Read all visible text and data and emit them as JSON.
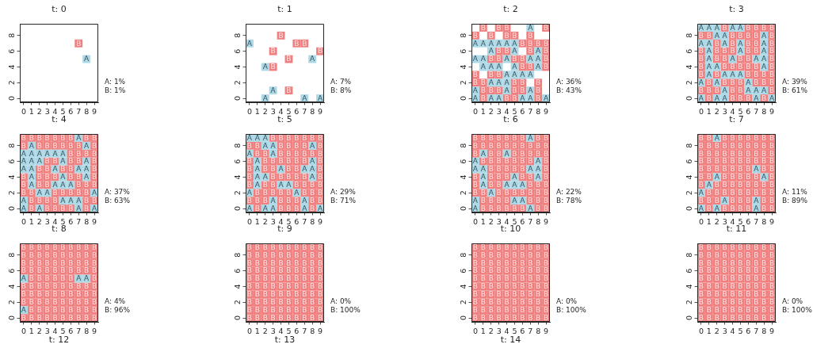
{
  "chart_data": [
    {
      "type": "scatter",
      "title": "t: 0",
      "xlim": [
        -0.5,
        9.5
      ],
      "ylim": [
        -0.5,
        9.5
      ],
      "xticks": [
        0,
        1,
        2,
        3,
        4,
        5,
        6,
        7,
        8,
        9
      ],
      "yticks": [
        0,
        2,
        4,
        6,
        8
      ],
      "marker": "square",
      "annotations": [
        "A: 1%",
        "B: 1%"
      ],
      "series": [
        {
          "name": "A",
          "color": "#add8e6",
          "x": [
            8
          ],
          "values": [
            5
          ]
        },
        {
          "name": "B",
          "color": "#f08080",
          "x": [
            7
          ],
          "values": [
            7
          ]
        }
      ]
    },
    {
      "type": "scatter",
      "title": "t: 1",
      "xlim": [
        -0.5,
        9.5
      ],
      "ylim": [
        -0.5,
        9.5
      ],
      "xticks": [
        0,
        1,
        2,
        3,
        4,
        5,
        6,
        7,
        8,
        9
      ],
      "yticks": [
        0,
        2,
        4,
        6,
        8
      ],
      "marker": "square",
      "annotations": [
        "A: 7%",
        "B: 8%"
      ],
      "series": [
        {
          "name": "A",
          "color": "#add8e6",
          "x": [
            0,
            8,
            2,
            3,
            2,
            7,
            9
          ],
          "values": [
            7,
            5,
            4,
            1,
            0,
            0,
            0
          ]
        },
        {
          "name": "B",
          "color": "#f08080",
          "x": [
            4,
            6,
            7,
            3,
            9,
            5,
            3,
            5
          ],
          "values": [
            8,
            7,
            7,
            6,
            6,
            5,
            4,
            1
          ]
        }
      ]
    },
    {
      "type": "scatter",
      "title": "t: 2",
      "xlim": [
        -0.5,
        9.5
      ],
      "ylim": [
        -0.5,
        9.5
      ],
      "xticks": [
        0,
        1,
        2,
        3,
        4,
        5,
        6,
        7,
        8,
        9
      ],
      "yticks": [
        0,
        2,
        4,
        6,
        8
      ],
      "marker": "square",
      "annotations": [
        "A: 36%",
        "B: 43%"
      ],
      "series": [
        {
          "name": "A",
          "color": "#add8e6",
          "x": [
            7,
            0,
            1,
            2,
            3,
            4,
            5,
            2,
            5,
            8,
            0,
            1,
            4,
            7,
            8,
            1,
            2,
            3,
            5,
            8,
            4,
            5,
            6,
            7,
            2,
            3,
            4,
            0,
            4,
            7,
            0,
            2,
            3,
            6,
            7,
            9
          ],
          "values": [
            9,
            7,
            7,
            7,
            7,
            7,
            7,
            6,
            6,
            6,
            5,
            5,
            5,
            5,
            5,
            4,
            4,
            4,
            4,
            4,
            3,
            3,
            3,
            3,
            2,
            2,
            2,
            1,
            1,
            1,
            0,
            0,
            0,
            0,
            0,
            0
          ]
        },
        {
          "name": "B",
          "color": "#f08080",
          "x": [
            1,
            3,
            4,
            9,
            0,
            2,
            4,
            5,
            7,
            6,
            7,
            8,
            9,
            3,
            4,
            7,
            9,
            2,
            3,
            5,
            6,
            9,
            6,
            7,
            9,
            0,
            2,
            3,
            0,
            1,
            5,
            6,
            8,
            1,
            2,
            3,
            5,
            6,
            8,
            1,
            4,
            5,
            8
          ],
          "values": [
            9,
            9,
            9,
            9,
            8,
            8,
            8,
            8,
            8,
            7,
            7,
            7,
            7,
            6,
            6,
            6,
            6,
            5,
            5,
            5,
            5,
            5,
            4,
            4,
            4,
            3,
            3,
            3,
            2,
            2,
            2,
            2,
            2,
            1,
            1,
            1,
            1,
            1,
            1,
            0,
            0,
            0,
            0
          ]
        }
      ]
    },
    {
      "type": "scatter",
      "title": "t: 3",
      "xlim": [
        -0.5,
        9.5
      ],
      "ylim": [
        -0.5,
        9.5
      ],
      "xticks": [
        0,
        1,
        2,
        3,
        4,
        5,
        6,
        7,
        8,
        9
      ],
      "yticks": [
        0,
        2,
        4,
        6,
        8
      ],
      "marker": "square",
      "annotations": [
        "A: 39%",
        "B: 61%"
      ],
      "series": [
        {
          "name": "A",
          "color": "#add8e6",
          "x": [
            0,
            1,
            2,
            4,
            5,
            2,
            3,
            8,
            0,
            1,
            3,
            5,
            8,
            1,
            5,
            8,
            1,
            4,
            7,
            8,
            1,
            2,
            8,
            1,
            3,
            4,
            5,
            0,
            2,
            6,
            3,
            6,
            7,
            8,
            0,
            2,
            3,
            7,
            9
          ],
          "values": [
            9,
            9,
            9,
            9,
            9,
            8,
            8,
            8,
            7,
            7,
            7,
            7,
            7,
            6,
            6,
            6,
            5,
            5,
            5,
            5,
            4,
            4,
            4,
            3,
            3,
            3,
            3,
            2,
            2,
            2,
            1,
            1,
            1,
            1,
            0,
            0,
            0,
            0,
            0
          ]
        },
        {
          "name": "B",
          "color": "#f08080",
          "x": [
            3,
            6,
            7,
            8,
            9,
            0,
            1,
            4,
            5,
            6,
            7,
            9,
            2,
            4,
            6,
            7,
            9,
            0,
            2,
            3,
            4,
            6,
            7,
            9,
            0,
            2,
            3,
            5,
            6,
            9,
            0,
            3,
            4,
            5,
            6,
            7,
            9,
            0,
            2,
            6,
            7,
            8,
            9,
            1,
            3,
            4,
            5,
            7,
            8,
            9,
            0,
            1,
            2,
            4,
            5,
            9,
            1,
            4,
            5,
            6,
            8
          ],
          "values": [
            9,
            9,
            9,
            9,
            9,
            8,
            8,
            8,
            8,
            8,
            8,
            8,
            7,
            7,
            7,
            7,
            7,
            6,
            6,
            6,
            6,
            6,
            6,
            6,
            5,
            5,
            5,
            5,
            5,
            5,
            4,
            4,
            4,
            4,
            4,
            4,
            4,
            3,
            3,
            3,
            3,
            3,
            3,
            2,
            2,
            2,
            2,
            2,
            2,
            2,
            1,
            1,
            1,
            1,
            1,
            1,
            0,
            0,
            0,
            0,
            0
          ]
        }
      ]
    },
    {
      "type": "scatter",
      "title": "t: 4",
      "xlim": [
        -0.5,
        9.5
      ],
      "ylim": [
        -0.5,
        9.5
      ],
      "xticks": [
        0,
        1,
        2,
        3,
        4,
        5,
        6,
        7,
        8,
        9
      ],
      "yticks": [
        0,
        2,
        4,
        6,
        8
      ],
      "marker": "square",
      "annotations": [
        "A: 37%",
        "B: 63%"
      ],
      "series": [
        {
          "name": "A",
          "color": "#add8e6",
          "x": [
            7,
            1,
            8,
            0,
            1,
            2,
            3,
            4,
            5,
            0,
            1,
            2,
            5,
            8,
            0,
            1,
            4,
            7,
            8,
            1,
            5,
            8,
            1,
            4,
            5,
            6,
            2,
            3,
            9,
            0,
            5,
            6,
            7,
            0,
            2,
            7,
            9
          ],
          "values": [
            9,
            8,
            8,
            7,
            7,
            7,
            7,
            7,
            7,
            6,
            6,
            6,
            6,
            6,
            5,
            5,
            5,
            5,
            5,
            4,
            4,
            4,
            3,
            3,
            3,
            3,
            2,
            2,
            2,
            1,
            1,
            1,
            1,
            0,
            0,
            0,
            0
          ]
        },
        {
          "name": "B",
          "color": "#f08080",
          "x": [
            0,
            1,
            2,
            3,
            4,
            5,
            6,
            8,
            9,
            0,
            2,
            3,
            4,
            5,
            6,
            7,
            9,
            6,
            7,
            8,
            9,
            3,
            4,
            6,
            7,
            9,
            2,
            3,
            5,
            6,
            9,
            0,
            2,
            3,
            4,
            6,
            7,
            9,
            0,
            2,
            3,
            7,
            8,
            9,
            0,
            1,
            4,
            5,
            6,
            7,
            8,
            1,
            2,
            3,
            4,
            8,
            9,
            1,
            3,
            4,
            5,
            6,
            8
          ],
          "values": [
            9,
            9,
            9,
            9,
            9,
            9,
            9,
            9,
            9,
            8,
            8,
            8,
            8,
            8,
            8,
            8,
            8,
            7,
            7,
            7,
            7,
            6,
            6,
            6,
            6,
            6,
            5,
            5,
            5,
            5,
            5,
            4,
            4,
            4,
            4,
            4,
            4,
            4,
            3,
            3,
            3,
            3,
            3,
            3,
            2,
            2,
            2,
            2,
            2,
            2,
            2,
            1,
            1,
            1,
            1,
            1,
            1,
            0,
            0,
            0,
            0,
            0,
            0
          ]
        }
      ]
    },
    {
      "type": "scatter",
      "title": "t: 5",
      "xlim": [
        -0.5,
        9.5
      ],
      "ylim": [
        -0.5,
        9.5
      ],
      "xticks": [
        0,
        1,
        2,
        3,
        4,
        5,
        6,
        7,
        8,
        9
      ],
      "yticks": [
        0,
        2,
        4,
        6,
        8
      ],
      "marker": "square",
      "annotations": [
        "A: 29%",
        "B: 71%"
      ],
      "series": [
        {
          "name": "A",
          "color": "#add8e6",
          "x": [
            0,
            1,
            2,
            2,
            3,
            8,
            0,
            3,
            1,
            8,
            1,
            4,
            7,
            8,
            1,
            2,
            8,
            1,
            4,
            5,
            0,
            6,
            3,
            7,
            0,
            2,
            3,
            7,
            9
          ],
          "values": [
            9,
            9,
            9,
            8,
            8,
            8,
            7,
            7,
            6,
            6,
            5,
            5,
            5,
            5,
            4,
            4,
            4,
            3,
            3,
            3,
            2,
            2,
            1,
            1,
            0,
            0,
            0,
            0,
            0
          ]
        },
        {
          "name": "B",
          "color": "#f08080",
          "x": [
            3,
            4,
            5,
            6,
            7,
            8,
            9,
            0,
            1,
            4,
            5,
            6,
            7,
            9,
            1,
            2,
            4,
            5,
            6,
            7,
            8,
            9,
            0,
            2,
            3,
            4,
            5,
            6,
            7,
            9,
            0,
            2,
            3,
            5,
            6,
            9,
            0,
            3,
            4,
            5,
            6,
            7,
            9,
            0,
            2,
            3,
            6,
            7,
            8,
            9,
            1,
            2,
            3,
            4,
            5,
            7,
            8,
            9,
            0,
            1,
            2,
            4,
            5,
            6,
            8,
            9,
            1,
            4,
            5,
            6,
            8
          ],
          "values": [
            9,
            9,
            9,
            9,
            9,
            9,
            9,
            8,
            8,
            8,
            8,
            8,
            8,
            8,
            7,
            7,
            7,
            7,
            7,
            7,
            7,
            7,
            6,
            6,
            6,
            6,
            6,
            6,
            6,
            6,
            5,
            5,
            5,
            5,
            5,
            5,
            4,
            4,
            4,
            4,
            4,
            4,
            4,
            3,
            3,
            3,
            3,
            3,
            3,
            3,
            2,
            2,
            2,
            2,
            2,
            2,
            2,
            2,
            1,
            1,
            1,
            1,
            1,
            1,
            1,
            1,
            0,
            0,
            0,
            0,
            0
          ]
        }
      ]
    },
    {
      "type": "scatter",
      "title": "t: 6",
      "xlim": [
        -0.5,
        9.5
      ],
      "ylim": [
        -0.5,
        9.5
      ],
      "xticks": [
        0,
        1,
        2,
        3,
        4,
        5,
        6,
        7,
        8,
        9
      ],
      "yticks": [
        0,
        2,
        4,
        6,
        8
      ],
      "marker": "square",
      "annotations": [
        "A: 22%",
        "B: 78%"
      ],
      "series": [
        {
          "name": "A",
          "color": "#add8e6",
          "x": [
            7,
            1,
            4,
            0,
            8,
            0,
            1,
            7,
            8,
            1,
            5,
            8,
            1,
            4,
            5,
            6,
            2,
            0,
            5,
            6,
            0,
            7
          ],
          "values": [
            9,
            7,
            7,
            6,
            6,
            5,
            5,
            5,
            5,
            4,
            4,
            4,
            3,
            3,
            3,
            3,
            2,
            1,
            1,
            1,
            0,
            0
          ]
        },
        {
          "name": "B",
          "color": "#f08080",
          "x": [
            0,
            1,
            2,
            3,
            4,
            5,
            6,
            8,
            9,
            0,
            1,
            2,
            3,
            4,
            5,
            6,
            7,
            8,
            9,
            0,
            2,
            3,
            5,
            6,
            7,
            8,
            9,
            1,
            2,
            3,
            4,
            5,
            6,
            7,
            9,
            2,
            3,
            4,
            5,
            6,
            9,
            0,
            2,
            3,
            4,
            6,
            7,
            9,
            0,
            2,
            3,
            7,
            8,
            9,
            0,
            1,
            3,
            4,
            5,
            6,
            7,
            8,
            9,
            1,
            2,
            3,
            4,
            7,
            8,
            9,
            1,
            2,
            3,
            4,
            5,
            6,
            8,
            9
          ],
          "values": [
            9,
            9,
            9,
            9,
            9,
            9,
            9,
            9,
            9,
            8,
            8,
            8,
            8,
            8,
            8,
            8,
            8,
            8,
            8,
            7,
            7,
            7,
            7,
            7,
            7,
            7,
            7,
            6,
            6,
            6,
            6,
            6,
            6,
            6,
            6,
            5,
            5,
            5,
            5,
            5,
            5,
            4,
            4,
            4,
            4,
            4,
            4,
            4,
            3,
            3,
            3,
            3,
            3,
            3,
            2,
            2,
            2,
            2,
            2,
            2,
            2,
            2,
            2,
            1,
            1,
            1,
            1,
            1,
            1,
            1,
            0,
            0,
            0,
            0,
            0,
            0,
            0,
            0
          ]
        }
      ]
    },
    {
      "type": "scatter",
      "title": "t: 7",
      "xlim": [
        -0.5,
        9.5
      ],
      "ylim": [
        -0.5,
        9.5
      ],
      "xticks": [
        0,
        1,
        2,
        3,
        4,
        5,
        6,
        7,
        8,
        9
      ],
      "yticks": [
        0,
        2,
        4,
        6,
        8
      ],
      "marker": "square",
      "annotations": [
        "A: 11%",
        "B: 89%"
      ],
      "series": [
        {
          "name": "A",
          "color": "#add8e6",
          "x": [
            2,
            7,
            2,
            8,
            1,
            0,
            3,
            7,
            0,
            2,
            7
          ],
          "values": [
            9,
            5,
            4,
            4,
            3,
            2,
            1,
            1,
            0,
            0,
            0
          ]
        },
        {
          "name": "B",
          "color": "#f08080",
          "x": [
            0,
            1,
            3,
            4,
            5,
            6,
            7,
            8,
            9,
            0,
            1,
            2,
            3,
            4,
            5,
            6,
            7,
            8,
            9,
            0,
            1,
            2,
            3,
            4,
            5,
            6,
            7,
            8,
            9,
            0,
            1,
            2,
            3,
            4,
            5,
            6,
            7,
            8,
            9,
            0,
            1,
            2,
            3,
            4,
            5,
            6,
            8,
            9,
            0,
            1,
            3,
            4,
            5,
            6,
            7,
            9,
            0,
            2,
            3,
            4,
            5,
            6,
            7,
            8,
            9,
            1,
            2,
            3,
            4,
            5,
            6,
            7,
            8,
            9,
            0,
            1,
            2,
            4,
            5,
            6,
            8,
            9,
            1,
            3,
            4,
            5,
            6,
            8,
            9
          ],
          "values": [
            9,
            9,
            9,
            9,
            9,
            9,
            9,
            9,
            9,
            8,
            8,
            8,
            8,
            8,
            8,
            8,
            8,
            8,
            8,
            7,
            7,
            7,
            7,
            7,
            7,
            7,
            7,
            7,
            7,
            6,
            6,
            6,
            6,
            6,
            6,
            6,
            6,
            6,
            6,
            5,
            5,
            5,
            5,
            5,
            5,
            5,
            5,
            5,
            4,
            4,
            4,
            4,
            4,
            4,
            4,
            4,
            3,
            3,
            3,
            3,
            3,
            3,
            3,
            3,
            3,
            2,
            2,
            2,
            2,
            2,
            2,
            2,
            2,
            2,
            1,
            1,
            1,
            1,
            1,
            1,
            1,
            1,
            0,
            0,
            0,
            0,
            0,
            0,
            0
          ]
        }
      ]
    },
    {
      "type": "scatter",
      "title": "t: 8",
      "xlim": [
        -0.5,
        9.5
      ],
      "ylim": [
        -0.5,
        9.5
      ],
      "xticks": [
        0,
        1,
        2,
        3,
        4,
        5,
        6,
        7,
        8,
        9
      ],
      "yticks": [
        0,
        2,
        4,
        6,
        8
      ],
      "marker": "square",
      "annotations": [
        "A: 4%",
        "B: 96%"
      ],
      "series": [
        {
          "name": "A",
          "color": "#add8e6",
          "x": [
            0,
            7,
            8,
            0
          ],
          "values": [
            5,
            5,
            5,
            1
          ]
        },
        {
          "name": "B",
          "color": "#f08080",
          "x": [
            0,
            1,
            2,
            3,
            4,
            5,
            6,
            7,
            8,
            9,
            0,
            1,
            2,
            3,
            4,
            5,
            6,
            7,
            8,
            9,
            0,
            1,
            2,
            3,
            4,
            5,
            6,
            7,
            8,
            9,
            0,
            1,
            2,
            3,
            4,
            5,
            6,
            7,
            8,
            9,
            1,
            2,
            3,
            4,
            5,
            6,
            9,
            0,
            1,
            2,
            3,
            4,
            5,
            6,
            7,
            8,
            9,
            0,
            1,
            2,
            3,
            4,
            5,
            6,
            7,
            8,
            9,
            0,
            1,
            2,
            3,
            4,
            5,
            6,
            7,
            8,
            9,
            1,
            2,
            3,
            4,
            5,
            6,
            7,
            8,
            9,
            0,
            1,
            2,
            3,
            4,
            5,
            6,
            7,
            8,
            9
          ],
          "values": [
            9,
            9,
            9,
            9,
            9,
            9,
            9,
            9,
            9,
            9,
            8,
            8,
            8,
            8,
            8,
            8,
            8,
            8,
            8,
            8,
            7,
            7,
            7,
            7,
            7,
            7,
            7,
            7,
            7,
            7,
            6,
            6,
            6,
            6,
            6,
            6,
            6,
            6,
            6,
            6,
            5,
            5,
            5,
            5,
            5,
            5,
            5,
            4,
            4,
            4,
            4,
            4,
            4,
            4,
            4,
            4,
            4,
            3,
            3,
            3,
            3,
            3,
            3,
            3,
            3,
            3,
            3,
            2,
            2,
            2,
            2,
            2,
            2,
            2,
            2,
            2,
            2,
            1,
            1,
            1,
            1,
            1,
            1,
            1,
            1,
            1,
            0,
            0,
            0,
            0,
            0,
            0,
            0,
            0,
            0,
            0
          ]
        }
      ]
    },
    {
      "type": "scatter",
      "title": "t: 9",
      "xlim": [
        -0.5,
        9.5
      ],
      "ylim": [
        -0.5,
        9.5
      ],
      "xticks": [
        0,
        1,
        2,
        3,
        4,
        5,
        6,
        7,
        8,
        9
      ],
      "yticks": [
        0,
        2,
        4,
        6,
        8
      ],
      "marker": "square",
      "annotations": [
        "A: 0%",
        "B: 100%"
      ],
      "series": [
        {
          "name": "B",
          "color": "#f08080",
          "x": [
            0,
            1,
            2,
            3,
            4,
            5,
            6,
            7,
            8,
            9,
            0,
            1,
            2,
            3,
            4,
            5,
            6,
            7,
            8,
            9,
            0,
            1,
            2,
            3,
            4,
            5,
            6,
            7,
            8,
            9,
            0,
            1,
            2,
            3,
            4,
            5,
            6,
            7,
            8,
            9,
            0,
            1,
            2,
            3,
            4,
            5,
            6,
            7,
            8,
            9,
            0,
            1,
            2,
            3,
            4,
            5,
            6,
            7,
            8,
            9,
            0,
            1,
            2,
            3,
            4,
            5,
            6,
            7,
            8,
            9,
            0,
            1,
            2,
            3,
            4,
            5,
            6,
            7,
            8,
            9,
            0,
            1,
            2,
            3,
            4,
            5,
            6,
            7,
            8,
            9,
            0,
            1,
            2,
            3,
            4,
            5,
            6,
            7,
            8,
            9
          ],
          "values": [
            9,
            9,
            9,
            9,
            9,
            9,
            9,
            9,
            9,
            9,
            8,
            8,
            8,
            8,
            8,
            8,
            8,
            8,
            8,
            8,
            7,
            7,
            7,
            7,
            7,
            7,
            7,
            7,
            7,
            7,
            6,
            6,
            6,
            6,
            6,
            6,
            6,
            6,
            6,
            6,
            5,
            5,
            5,
            5,
            5,
            5,
            5,
            5,
            5,
            5,
            4,
            4,
            4,
            4,
            4,
            4,
            4,
            4,
            4,
            4,
            3,
            3,
            3,
            3,
            3,
            3,
            3,
            3,
            3,
            3,
            2,
            2,
            2,
            2,
            2,
            2,
            2,
            2,
            2,
            2,
            1,
            1,
            1,
            1,
            1,
            1,
            1,
            1,
            1,
            1,
            0,
            0,
            0,
            0,
            0,
            0,
            0,
            0,
            0,
            0
          ]
        }
      ]
    },
    {
      "type": "scatter",
      "title": "t: 10",
      "xlim": [
        -0.5,
        9.5
      ],
      "ylim": [
        -0.5,
        9.5
      ],
      "xticks": [
        0,
        1,
        2,
        3,
        4,
        5,
        6,
        7,
        8,
        9
      ],
      "yticks": [
        0,
        2,
        4,
        6,
        8
      ],
      "marker": "square",
      "annotations": [
        "A: 0%",
        "B: 100%"
      ],
      "series": [
        {
          "name": "B",
          "color": "#f08080",
          "x": [
            0,
            1,
            2,
            3,
            4,
            5,
            6,
            7,
            8,
            9,
            0,
            1,
            2,
            3,
            4,
            5,
            6,
            7,
            8,
            9,
            0,
            1,
            2,
            3,
            4,
            5,
            6,
            7,
            8,
            9,
            0,
            1,
            2,
            3,
            4,
            5,
            6,
            7,
            8,
            9,
            0,
            1,
            2,
            3,
            4,
            5,
            6,
            7,
            8,
            9,
            0,
            1,
            2,
            3,
            4,
            5,
            6,
            7,
            8,
            9,
            0,
            1,
            2,
            3,
            4,
            5,
            6,
            7,
            8,
            9,
            0,
            1,
            2,
            3,
            4,
            5,
            6,
            7,
            8,
            9,
            0,
            1,
            2,
            3,
            4,
            5,
            6,
            7,
            8,
            9,
            0,
            1,
            2,
            3,
            4,
            5,
            6,
            7,
            8,
            9
          ],
          "values": [
            9,
            9,
            9,
            9,
            9,
            9,
            9,
            9,
            9,
            9,
            8,
            8,
            8,
            8,
            8,
            8,
            8,
            8,
            8,
            8,
            7,
            7,
            7,
            7,
            7,
            7,
            7,
            7,
            7,
            7,
            6,
            6,
            6,
            6,
            6,
            6,
            6,
            6,
            6,
            6,
            5,
            5,
            5,
            5,
            5,
            5,
            5,
            5,
            5,
            5,
            4,
            4,
            4,
            4,
            4,
            4,
            4,
            4,
            4,
            4,
            3,
            3,
            3,
            3,
            3,
            3,
            3,
            3,
            3,
            3,
            2,
            2,
            2,
            2,
            2,
            2,
            2,
            2,
            2,
            2,
            1,
            1,
            1,
            1,
            1,
            1,
            1,
            1,
            1,
            1,
            0,
            0,
            0,
            0,
            0,
            0,
            0,
            0,
            0,
            0
          ]
        }
      ]
    },
    {
      "type": "scatter",
      "title": "t: 11",
      "xlim": [
        -0.5,
        9.5
      ],
      "ylim": [
        -0.5,
        9.5
      ],
      "xticks": [
        0,
        1,
        2,
        3,
        4,
        5,
        6,
        7,
        8,
        9
      ],
      "yticks": [
        0,
        2,
        4,
        6,
        8
      ],
      "marker": "square",
      "annotations": [
        "A: 0%",
        "B: 100%"
      ],
      "series": [
        {
          "name": "B",
          "color": "#f08080",
          "x": [
            0,
            1,
            2,
            3,
            4,
            5,
            6,
            7,
            8,
            9,
            0,
            1,
            2,
            3,
            4,
            5,
            6,
            7,
            8,
            9,
            0,
            1,
            2,
            3,
            4,
            5,
            6,
            7,
            8,
            9,
            0,
            1,
            2,
            3,
            4,
            5,
            6,
            7,
            8,
            9,
            0,
            1,
            2,
            3,
            4,
            5,
            6,
            7,
            8,
            9,
            0,
            1,
            2,
            3,
            4,
            5,
            6,
            7,
            8,
            9,
            0,
            1,
            2,
            3,
            4,
            5,
            6,
            7,
            8,
            9,
            0,
            1,
            2,
            3,
            4,
            5,
            6,
            7,
            8,
            9,
            0,
            1,
            2,
            3,
            4,
            5,
            6,
            7,
            8,
            9,
            0,
            1,
            2,
            3,
            4,
            5,
            6,
            7,
            8,
            9
          ],
          "values": [
            9,
            9,
            9,
            9,
            9,
            9,
            9,
            9,
            9,
            9,
            8,
            8,
            8,
            8,
            8,
            8,
            8,
            8,
            8,
            8,
            7,
            7,
            7,
            7,
            7,
            7,
            7,
            7,
            7,
            7,
            6,
            6,
            6,
            6,
            6,
            6,
            6,
            6,
            6,
            6,
            5,
            5,
            5,
            5,
            5,
            5,
            5,
            5,
            5,
            5,
            4,
            4,
            4,
            4,
            4,
            4,
            4,
            4,
            4,
            4,
            3,
            3,
            3,
            3,
            3,
            3,
            3,
            3,
            3,
            3,
            2,
            2,
            2,
            2,
            2,
            2,
            2,
            2,
            2,
            2,
            1,
            1,
            1,
            1,
            1,
            1,
            1,
            1,
            1,
            1,
            0,
            0,
            0,
            0,
            0,
            0,
            0,
            0,
            0,
            0
          ]
        }
      ]
    },
    {
      "type": "other",
      "title": "t: 12"
    },
    {
      "type": "other",
      "title": "t: 13"
    },
    {
      "type": "other",
      "title": "t: 14"
    }
  ]
}
